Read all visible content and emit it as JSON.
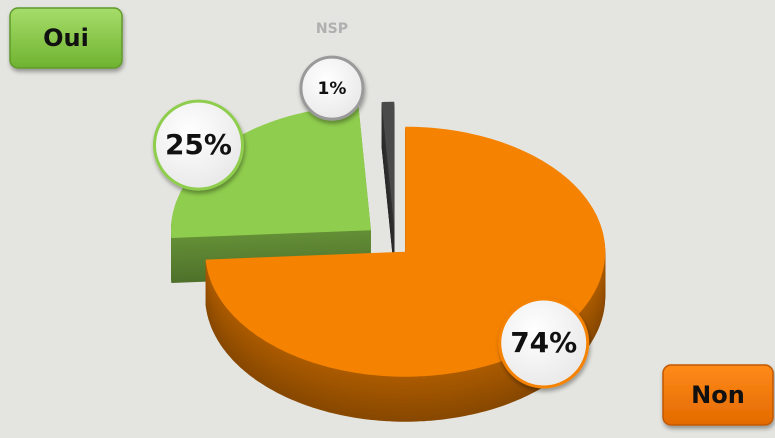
{
  "chart_data": {
    "type": "pie3d",
    "categories": [
      "Non",
      "Oui",
      "NSP"
    ],
    "values": [
      74,
      25,
      1
    ],
    "value_labels": [
      "74%",
      "25%",
      "1%"
    ],
    "colors": [
      "#f58200",
      "#8fcd4e",
      "#4a4a4a"
    ]
  }
}
